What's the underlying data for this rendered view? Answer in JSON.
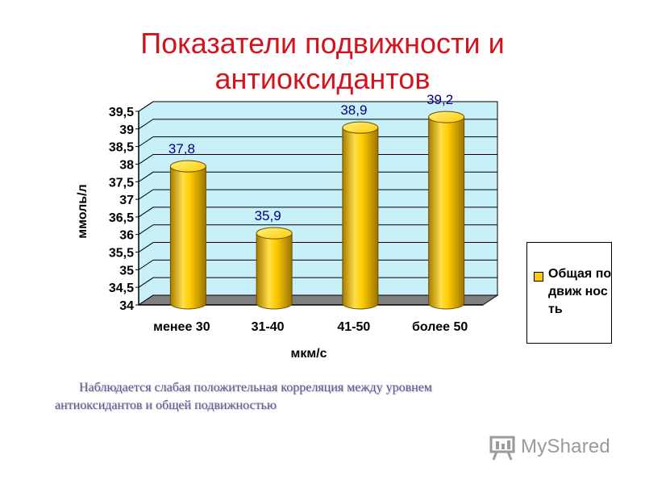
{
  "title": "Показатели подвижности и антиоксидантов",
  "note": "Наблюдается слабая положительная корреляция между уровнем антиоксидантов и общей подвижностью",
  "logo": {
    "text": "MyShared"
  },
  "colors": {
    "title": "#d2141e",
    "plot_background": "#c8f0f8",
    "floor": "#808080",
    "bar": "#ffcc00",
    "data_label": "#000080"
  },
  "chart_data": {
    "type": "bar",
    "categories": [
      "менее 30",
      "31-40",
      "41-50",
      "более 50"
    ],
    "series": [
      {
        "name": "Общая подвижность",
        "values": [
          37.8,
          35.9,
          38.9,
          39.2
        ]
      }
    ],
    "data_labels": [
      "37,8",
      "35,9",
      "38,9",
      "39,2"
    ],
    "xlabel": "мкм/с",
    "ylabel": "ммоль/л",
    "ylim": [
      34,
      39.5
    ],
    "yticks": [
      "34",
      "34,5",
      "35",
      "35,5",
      "36",
      "36,5",
      "37",
      "37,5",
      "38",
      "38,5",
      "39",
      "39,5"
    ],
    "legend_label": "Общая подвиж ность",
    "legend_position": "right",
    "grid": true
  }
}
